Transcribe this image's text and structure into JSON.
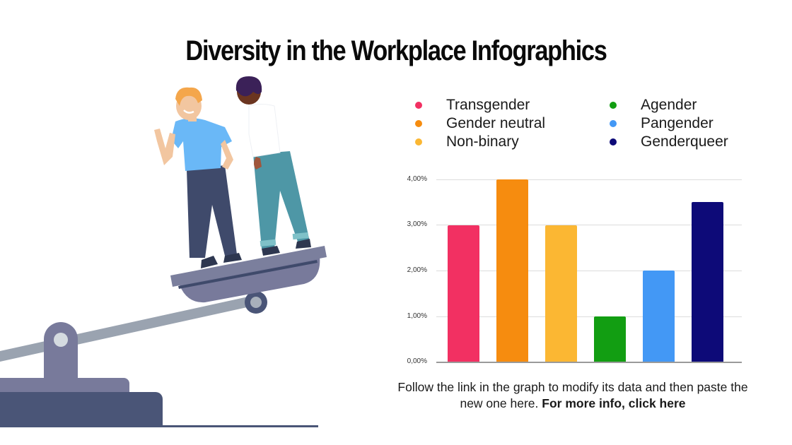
{
  "title": "Diversity in the Workplace Infographics",
  "legend": [
    {
      "label": "Transgender",
      "color": "#F23062"
    },
    {
      "label": "Gender neutral",
      "color": "#F68C0F"
    },
    {
      "label": "Non-binary",
      "color": "#FBB733"
    },
    {
      "label": "Agender",
      "color": "#129E12"
    },
    {
      "label": "Pangender",
      "color": "#4398F5"
    },
    {
      "label": "Genderqueer",
      "color": "#0D0A78"
    }
  ],
  "caption": {
    "text": "Follow the link in the graph to modify its data and then paste the new one here.",
    "link": "For more info, click here"
  },
  "chart_data": {
    "type": "bar",
    "title": "",
    "categories": [
      "Transgender",
      "Gender neutral",
      "Non-binary",
      "Agender",
      "Pangender",
      "Genderqueer"
    ],
    "values": [
      3.0,
      4.0,
      3.0,
      1.0,
      2.0,
      3.5
    ],
    "colors": [
      "#F23062",
      "#F68C0F",
      "#FBB733",
      "#129E12",
      "#4398F5",
      "#0D0A78"
    ],
    "value_format": "percent",
    "y_ticks": [
      "0,00%",
      "1,00%",
      "2,00%",
      "3,00%",
      "4,00%"
    ],
    "xlabel": "",
    "ylabel": "",
    "ylim": [
      0,
      4
    ],
    "grid": true,
    "legend_position": "top"
  }
}
